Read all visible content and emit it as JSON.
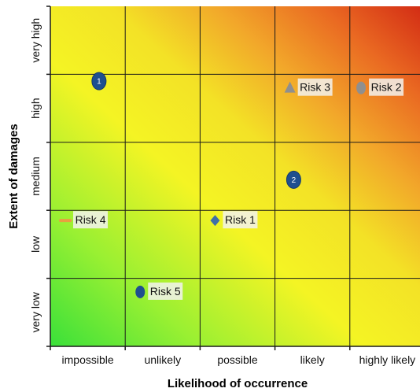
{
  "chart_data": {
    "type": "scatter",
    "title": "",
    "xlabel": "Likelihood of occurrence",
    "ylabel": "Extent of damages",
    "x_categories": [
      "impossible",
      "unlikely",
      "possible",
      "likely",
      "highly likely"
    ],
    "y_categories": [
      "very low",
      "low",
      "medium",
      "high",
      "very high"
    ],
    "xlim": [
      0,
      5
    ],
    "ylim": [
      0,
      5
    ],
    "grid": true,
    "legend": "none",
    "background": "heatmap gradient from green (bottom-left) through yellow to red (top-right)",
    "colors": {
      "low_risk": "#33e033",
      "medium_risk": "#f2f21f",
      "high_risk": "#e32f1a",
      "marker_blue": "#1f4f8f",
      "marker_gray": "#8f8f8f",
      "marker_orange": "#e8a040",
      "marker_steel": "#3f6fa8",
      "label_box": "#f2f2ee"
    },
    "points": [
      {
        "label": "Risk 1",
        "x": 2.2,
        "y": 1.85,
        "marker": "diamond",
        "color": "#3f6fa8"
      },
      {
        "label": "Risk 2",
        "x": 4.15,
        "y": 3.8,
        "marker": "circle",
        "color": "#8f8f8f"
      },
      {
        "label": "Risk 3",
        "x": 3.2,
        "y": 3.8,
        "marker": "triangle",
        "color": "#8f8f8f"
      },
      {
        "label": "Risk 4",
        "x": 0.2,
        "y": 1.85,
        "marker": "dash",
        "color": "#e8a040"
      },
      {
        "label": "Risk 5",
        "x": 1.2,
        "y": 0.8,
        "marker": "circle",
        "color": "#1f4f8f"
      }
    ],
    "numbered_markers": [
      {
        "number": "1",
        "x": 0.65,
        "y": 3.9,
        "color": "#1f4f8f"
      },
      {
        "number": "2",
        "x": 3.25,
        "y": 2.45,
        "color": "#1f4f8f"
      }
    ]
  }
}
